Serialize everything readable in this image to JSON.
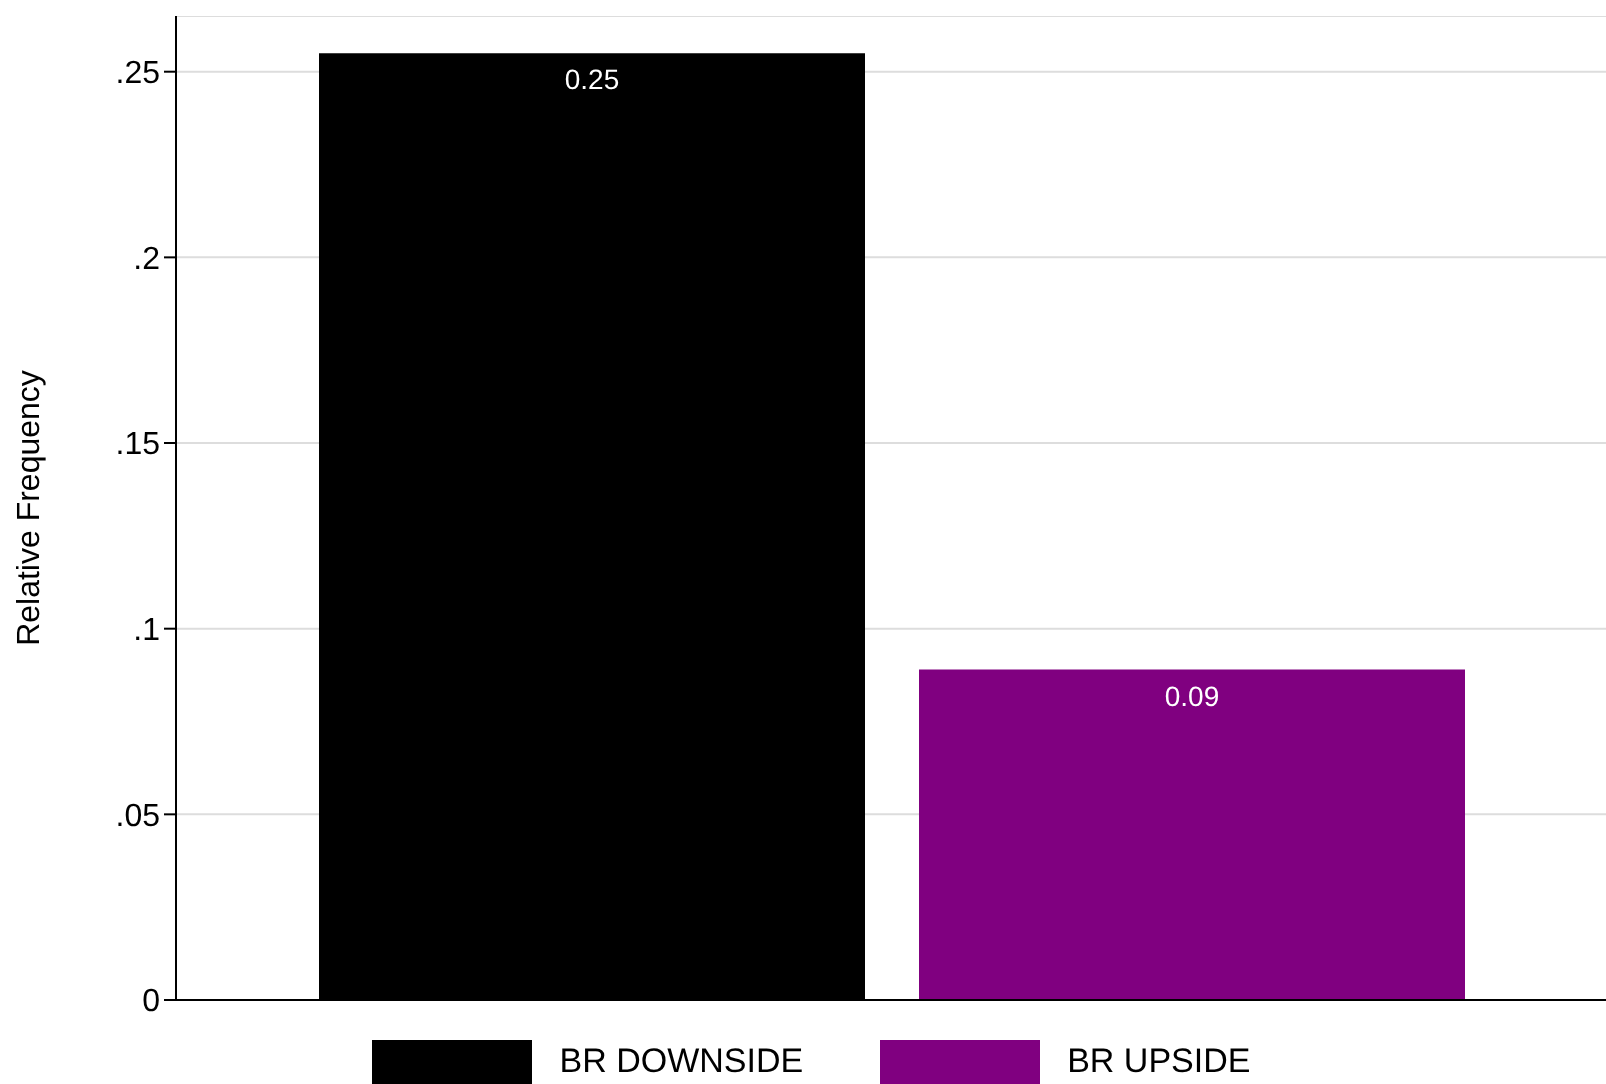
{
  "chart_data": {
    "type": "bar",
    "ylabel": "Relative Frequency",
    "categories": [
      null
    ],
    "series": [
      {
        "name": "BR DOWNSIDE",
        "color": "#000000",
        "values": [
          0.255
        ],
        "value_labels": [
          "0.25"
        ]
      },
      {
        "name": "BR UPSIDE",
        "color": "#800080",
        "values": [
          0.089
        ],
        "value_labels": [
          "0.09"
        ]
      }
    ],
    "ylim": [
      0,
      0.265
    ],
    "yticks": [
      {
        "value": 0,
        "label": "0"
      },
      {
        "value": 0.05,
        "label": ".05"
      },
      {
        "value": 0.1,
        "label": ".1"
      },
      {
        "value": 0.15,
        "label": ".15"
      },
      {
        "value": 0.2,
        "label": ".2"
      },
      {
        "value": 0.25,
        "label": ".25"
      }
    ],
    "grid": "y",
    "legend": "bottom"
  }
}
